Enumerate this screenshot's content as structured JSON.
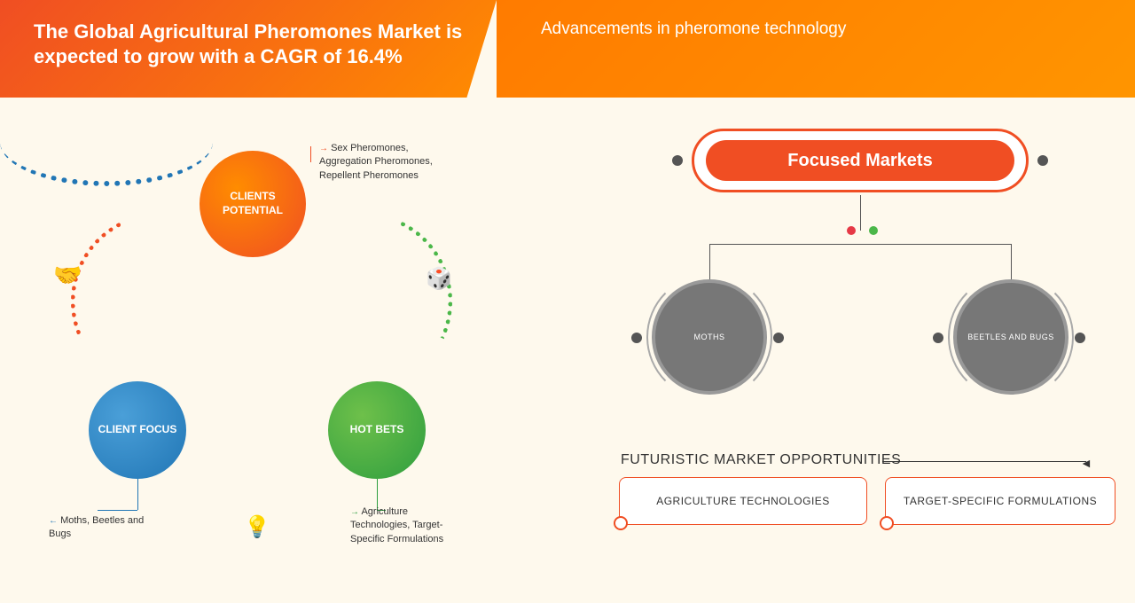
{
  "header": {
    "title": "The Global Agricultural Pheromones Market is expected to grow with a CAGR of 16.4%",
    "subtitle": "Advancements in pheromone technology"
  },
  "cycle": {
    "nodes": {
      "clients_potential": {
        "label": "CLIENTS POTENTIAL",
        "color_start": "#ff8c00",
        "color_end": "#f04e23",
        "detail": "Sex Pheromones, Aggregation Pheromones, Repellent Pheromones"
      },
      "client_focus": {
        "label": "CLIENT FOCUS",
        "color_start": "#4a9fd8",
        "color_end": "#2176b5",
        "detail": "Moths, Beetles and Bugs"
      },
      "hot_bets": {
        "label": "HOT BETS",
        "color_start": "#6ec04a",
        "color_end": "#2e9e3f",
        "detail": "Agriculture Technologies, Target-Specific Formulations"
      }
    },
    "arc_colors": {
      "red": "#f04e23",
      "green": "#4bb749",
      "blue": "#2176b5"
    },
    "icons": {
      "handshake": "🤝",
      "dice": "🎲",
      "bulb": "💡"
    }
  },
  "focused": {
    "title": "Focused Markets",
    "title_bg": "#f04e23",
    "sub": {
      "moths": "MOTHS",
      "beetles": "BEETLES AND BUGS",
      "circle_bg": "#777777"
    },
    "mid_dots": {
      "red": "#e63946",
      "green": "#4bb749"
    }
  },
  "opportunities": {
    "heading": "FUTURISTIC MARKET OPPORTUNITIES",
    "items": [
      "AGRICULTURE TECHNOLOGIES",
      "TARGET-SPECIFIC FORMULATIONS"
    ],
    "box_border": "#f04e23"
  },
  "background_color": "#fef9ed"
}
